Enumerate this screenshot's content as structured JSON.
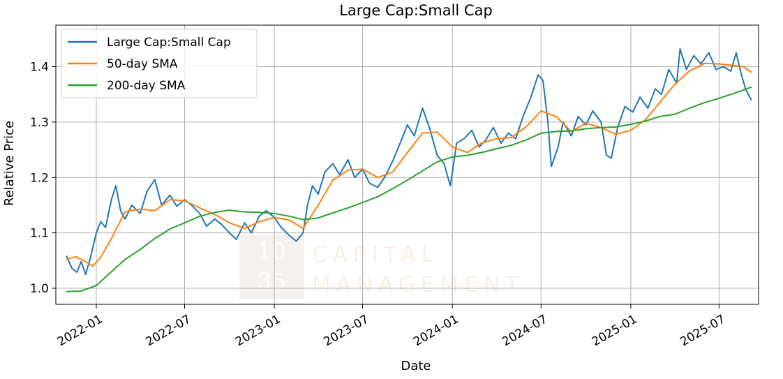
{
  "chart_data": {
    "type": "line",
    "title": "Large Cap:Small Cap",
    "xlabel": "Date",
    "ylabel": "Relative Price",
    "xlim": [
      "2021-10-10",
      "2025-09-20"
    ],
    "ylim": [
      0.971,
      1.475
    ],
    "x_ticks": [
      "2022-01",
      "2022-07",
      "2023-01",
      "2023-07",
      "2024-01",
      "2024-07",
      "2025-01",
      "2025-07"
    ],
    "y_ticks": [
      1.0,
      1.1,
      1.2,
      1.3,
      1.4
    ],
    "grid": true,
    "legend_position": "upper-left",
    "watermark": {
      "line1": "10",
      "line2": "35",
      "text1": "CAPITAL",
      "text2": "MANAGEMENT"
    },
    "series": [
      {
        "name": "Large Cap:Small Cap",
        "color": "#1f77b4",
        "points": [
          [
            "2021-11-01",
            1.058
          ],
          [
            "2021-11-12",
            1.036
          ],
          [
            "2021-11-22",
            1.029
          ],
          [
            "2021-12-01",
            1.048
          ],
          [
            "2021-12-10",
            1.025
          ],
          [
            "2021-12-20",
            1.055
          ],
          [
            "2022-01-01",
            1.1
          ],
          [
            "2022-01-10",
            1.12
          ],
          [
            "2022-01-20",
            1.11
          ],
          [
            "2022-02-01",
            1.16
          ],
          [
            "2022-02-10",
            1.185
          ],
          [
            "2022-02-20",
            1.14
          ],
          [
            "2022-03-01",
            1.125
          ],
          [
            "2022-03-15",
            1.15
          ],
          [
            "2022-04-01",
            1.135
          ],
          [
            "2022-04-15",
            1.175
          ],
          [
            "2022-05-01",
            1.196
          ],
          [
            "2022-05-15",
            1.15
          ],
          [
            "2022-06-01",
            1.168
          ],
          [
            "2022-06-15",
            1.148
          ],
          [
            "2022-07-01",
            1.16
          ],
          [
            "2022-07-15",
            1.15
          ],
          [
            "2022-08-01",
            1.135
          ],
          [
            "2022-08-15",
            1.112
          ],
          [
            "2022-09-01",
            1.125
          ],
          [
            "2022-09-15",
            1.115
          ],
          [
            "2022-10-01",
            1.1
          ],
          [
            "2022-10-15",
            1.088
          ],
          [
            "2022-11-01",
            1.118
          ],
          [
            "2022-11-15",
            1.1
          ],
          [
            "2022-12-01",
            1.13
          ],
          [
            "2022-12-15",
            1.14
          ],
          [
            "2023-01-01",
            1.128
          ],
          [
            "2023-01-15",
            1.11
          ],
          [
            "2023-02-01",
            1.095
          ],
          [
            "2023-02-15",
            1.085
          ],
          [
            "2023-03-01",
            1.1
          ],
          [
            "2023-03-10",
            1.15
          ],
          [
            "2023-03-20",
            1.185
          ],
          [
            "2023-04-01",
            1.17
          ],
          [
            "2023-04-15",
            1.21
          ],
          [
            "2023-05-01",
            1.225
          ],
          [
            "2023-05-15",
            1.205
          ],
          [
            "2023-06-01",
            1.232
          ],
          [
            "2023-06-15",
            1.2
          ],
          [
            "2023-07-01",
            1.215
          ],
          [
            "2023-07-15",
            1.19
          ],
          [
            "2023-08-01",
            1.182
          ],
          [
            "2023-08-15",
            1.2
          ],
          [
            "2023-09-01",
            1.23
          ],
          [
            "2023-09-15",
            1.26
          ],
          [
            "2023-10-01",
            1.295
          ],
          [
            "2023-10-15",
            1.275
          ],
          [
            "2023-11-01",
            1.325
          ],
          [
            "2023-11-15",
            1.29
          ],
          [
            "2023-12-01",
            1.24
          ],
          [
            "2023-12-15",
            1.225
          ],
          [
            "2023-12-28",
            1.185
          ],
          [
            "2024-01-10",
            1.262
          ],
          [
            "2024-01-25",
            1.27
          ],
          [
            "2024-02-10",
            1.285
          ],
          [
            "2024-02-25",
            1.255
          ],
          [
            "2024-03-10",
            1.268
          ],
          [
            "2024-03-25",
            1.29
          ],
          [
            "2024-04-10",
            1.262
          ],
          [
            "2024-04-25",
            1.28
          ],
          [
            "2024-05-10",
            1.27
          ],
          [
            "2024-05-25",
            1.31
          ],
          [
            "2024-06-10",
            1.345
          ],
          [
            "2024-06-25",
            1.385
          ],
          [
            "2024-07-05",
            1.375
          ],
          [
            "2024-07-15",
            1.3
          ],
          [
            "2024-07-22",
            1.22
          ],
          [
            "2024-08-05",
            1.255
          ],
          [
            "2024-08-15",
            1.3
          ],
          [
            "2024-09-01",
            1.275
          ],
          [
            "2024-09-15",
            1.31
          ],
          [
            "2024-10-01",
            1.295
          ],
          [
            "2024-10-15",
            1.32
          ],
          [
            "2024-11-01",
            1.3
          ],
          [
            "2024-11-12",
            1.24
          ],
          [
            "2024-11-22",
            1.235
          ],
          [
            "2024-12-05",
            1.29
          ],
          [
            "2024-12-20",
            1.328
          ],
          [
            "2025-01-05",
            1.318
          ],
          [
            "2025-01-20",
            1.345
          ],
          [
            "2025-02-05",
            1.325
          ],
          [
            "2025-02-20",
            1.36
          ],
          [
            "2025-03-05",
            1.35
          ],
          [
            "2025-03-20",
            1.395
          ],
          [
            "2025-04-05",
            1.37
          ],
          [
            "2025-04-12",
            1.432
          ],
          [
            "2025-04-25",
            1.395
          ],
          [
            "2025-05-10",
            1.42
          ],
          [
            "2025-05-25",
            1.405
          ],
          [
            "2025-06-10",
            1.425
          ],
          [
            "2025-06-25",
            1.395
          ],
          [
            "2025-07-10",
            1.4
          ],
          [
            "2025-07-25",
            1.392
          ],
          [
            "2025-08-05",
            1.425
          ],
          [
            "2025-08-15",
            1.388
          ],
          [
            "2025-08-25",
            1.358
          ],
          [
            "2025-09-05",
            1.34
          ]
        ]
      },
      {
        "name": "50-day SMA",
        "color": "#ff7f0e",
        "points": [
          [
            "2021-11-01",
            1.052
          ],
          [
            "2021-11-20",
            1.057
          ],
          [
            "2021-12-10",
            1.048
          ],
          [
            "2021-12-25",
            1.04
          ],
          [
            "2022-01-10",
            1.056
          ],
          [
            "2022-02-01",
            1.09
          ],
          [
            "2022-03-01",
            1.138
          ],
          [
            "2022-04-01",
            1.143
          ],
          [
            "2022-05-01",
            1.14
          ],
          [
            "2022-06-01",
            1.16
          ],
          [
            "2022-07-01",
            1.158
          ],
          [
            "2022-08-01",
            1.145
          ],
          [
            "2022-09-01",
            1.133
          ],
          [
            "2022-10-01",
            1.118
          ],
          [
            "2022-11-01",
            1.108
          ],
          [
            "2022-12-01",
            1.12
          ],
          [
            "2023-01-01",
            1.128
          ],
          [
            "2023-02-01",
            1.123
          ],
          [
            "2023-03-01",
            1.108
          ],
          [
            "2023-04-01",
            1.15
          ],
          [
            "2023-05-01",
            1.195
          ],
          [
            "2023-06-01",
            1.213
          ],
          [
            "2023-07-01",
            1.215
          ],
          [
            "2023-08-01",
            1.2
          ],
          [
            "2023-09-01",
            1.21
          ],
          [
            "2023-10-01",
            1.245
          ],
          [
            "2023-11-01",
            1.28
          ],
          [
            "2023-12-01",
            1.282
          ],
          [
            "2024-01-01",
            1.255
          ],
          [
            "2024-02-01",
            1.245
          ],
          [
            "2024-03-01",
            1.262
          ],
          [
            "2024-04-01",
            1.27
          ],
          [
            "2024-05-01",
            1.272
          ],
          [
            "2024-06-01",
            1.292
          ],
          [
            "2024-07-01",
            1.32
          ],
          [
            "2024-08-01",
            1.31
          ],
          [
            "2024-09-01",
            1.283
          ],
          [
            "2024-10-01",
            1.298
          ],
          [
            "2024-11-01",
            1.29
          ],
          [
            "2024-12-01",
            1.278
          ],
          [
            "2025-01-01",
            1.285
          ],
          [
            "2025-02-01",
            1.305
          ],
          [
            "2025-03-01",
            1.335
          ],
          [
            "2025-04-01",
            1.368
          ],
          [
            "2025-05-01",
            1.392
          ],
          [
            "2025-06-01",
            1.406
          ],
          [
            "2025-07-01",
            1.405
          ],
          [
            "2025-08-01",
            1.402
          ],
          [
            "2025-08-20",
            1.4
          ],
          [
            "2025-09-05",
            1.39
          ]
        ]
      },
      {
        "name": "200-day SMA",
        "color": "#2ca02c",
        "points": [
          [
            "2021-11-01",
            0.994
          ],
          [
            "2021-12-01",
            0.995
          ],
          [
            "2022-01-01",
            1.005
          ],
          [
            "2022-02-01",
            1.03
          ],
          [
            "2022-03-01",
            1.052
          ],
          [
            "2022-04-01",
            1.07
          ],
          [
            "2022-05-01",
            1.09
          ],
          [
            "2022-06-01",
            1.107
          ],
          [
            "2022-07-01",
            1.118
          ],
          [
            "2022-08-01",
            1.13
          ],
          [
            "2022-09-01",
            1.137
          ],
          [
            "2022-10-01",
            1.141
          ],
          [
            "2022-11-01",
            1.138
          ],
          [
            "2022-12-01",
            1.137
          ],
          [
            "2023-01-01",
            1.135
          ],
          [
            "2023-02-01",
            1.13
          ],
          [
            "2023-03-01",
            1.124
          ],
          [
            "2023-04-01",
            1.127
          ],
          [
            "2023-05-01",
            1.136
          ],
          [
            "2023-06-01",
            1.145
          ],
          [
            "2023-07-01",
            1.155
          ],
          [
            "2023-08-01",
            1.165
          ],
          [
            "2023-09-01",
            1.18
          ],
          [
            "2023-10-01",
            1.195
          ],
          [
            "2023-11-01",
            1.212
          ],
          [
            "2023-12-01",
            1.228
          ],
          [
            "2024-01-01",
            1.237
          ],
          [
            "2024-02-01",
            1.24
          ],
          [
            "2024-03-01",
            1.245
          ],
          [
            "2024-04-01",
            1.252
          ],
          [
            "2024-05-01",
            1.258
          ],
          [
            "2024-06-01",
            1.268
          ],
          [
            "2024-07-01",
            1.28
          ],
          [
            "2024-08-01",
            1.283
          ],
          [
            "2024-09-01",
            1.284
          ],
          [
            "2024-10-01",
            1.288
          ],
          [
            "2024-11-01",
            1.29
          ],
          [
            "2024-12-01",
            1.291
          ],
          [
            "2025-01-01",
            1.296
          ],
          [
            "2025-02-01",
            1.302
          ],
          [
            "2025-03-01",
            1.31
          ],
          [
            "2025-04-01",
            1.314
          ],
          [
            "2025-05-01",
            1.325
          ],
          [
            "2025-06-01",
            1.335
          ],
          [
            "2025-07-01",
            1.343
          ],
          [
            "2025-08-01",
            1.352
          ],
          [
            "2025-09-05",
            1.363
          ]
        ]
      }
    ]
  }
}
